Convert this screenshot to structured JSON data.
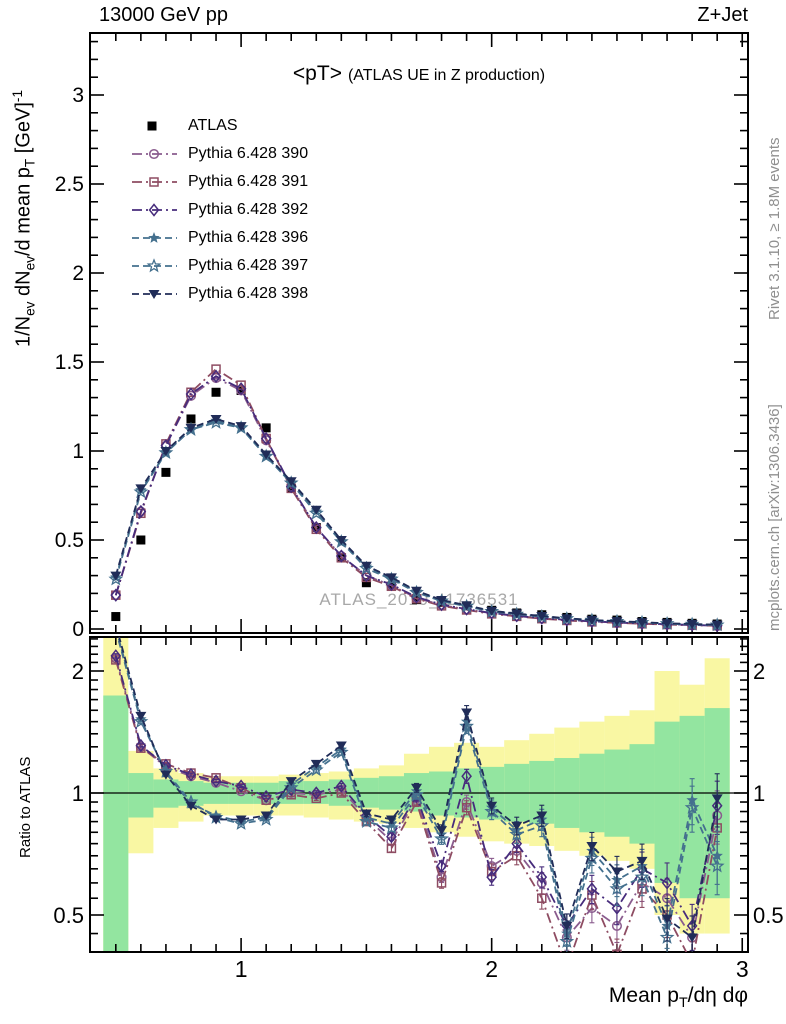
{
  "header": {
    "left": "13000 GeV pp",
    "right": "Z+Jet"
  },
  "title": {
    "main": "<pT>",
    "paren": "(ATLAS UE in Z production)"
  },
  "watermark": "ATLAS_2019_I1736531",
  "credits": {
    "top": "Rivet 3.1.10, ≥ 1.8M events",
    "bottom": "mcplots.cern.ch [arXiv:1306.3436]"
  },
  "colors": {
    "band_green": "#93e5a0",
    "band_yellow": "#f9f7a3",
    "credits_grey": "#8f8f8f",
    "watermark_grey": "#a8a8a8",
    "frame": "#000000"
  },
  "chart_data": {
    "type": "line",
    "title": "<pT> (ATLAS UE in Z production)",
    "xlabel": "Mean pT/dη dφ",
    "ylabel_main": "1/Nev dNev/d mean pT [GeV]^-1",
    "ylabel_ratio": "Ratio to ATLAS",
    "ylabel_main_parts": [
      {
        "t": "1/N"
      },
      {
        "t": "ev",
        "s": "sub"
      },
      {
        "t": " dN"
      },
      {
        "t": "ev",
        "s": "sub"
      },
      {
        "t": "/d mean p"
      },
      {
        "t": "T",
        "s": "sub"
      },
      {
        "t": " [GeV]"
      },
      {
        "t": "-1",
        "s": "sup"
      }
    ],
    "xlabel_parts": [
      {
        "t": "Mean p"
      },
      {
        "t": "T",
        "s": "sub"
      },
      {
        "t": "/dη dφ"
      }
    ],
    "x_range": [
      0.397,
      3.023
    ],
    "y_range_main": [
      -0.022,
      3.35
    ],
    "y_range_ratio": [
      0.405,
      2.425
    ],
    "ratio_log": true,
    "legend_position": "top-left",
    "grid": false,
    "main_y_ticks": {
      "major": [
        0,
        0.5,
        1,
        1.5,
        2,
        2.5,
        3
      ],
      "labels": [
        "0",
        "0.5",
        "1",
        "1.5",
        "2",
        "2.5",
        "3"
      ],
      "minor_step": 0.1
    },
    "x_ticks": {
      "major": [
        1,
        2,
        3
      ],
      "labels": [
        "1",
        "2",
        "3"
      ],
      "minor_step": 0.1,
      "min": 0.4,
      "max": 3.0
    },
    "ratio_y_ticks": {
      "major": [
        0.5,
        1,
        2
      ],
      "labels": [
        "0.5",
        "1",
        "2"
      ],
      "minor": [
        0.4,
        0.45,
        0.55,
        0.6,
        0.65,
        0.7,
        0.75,
        0.8,
        0.85,
        0.9,
        0.95,
        1.1,
        1.2,
        1.3,
        1.4,
        1.5,
        1.6,
        1.7,
        1.8,
        1.9,
        2.1,
        2.2,
        2.3,
        2.4
      ]
    },
    "x": [
      0.5,
      0.6,
      0.7,
      0.8,
      0.9,
      1.0,
      1.1,
      1.2,
      1.3,
      1.4,
      1.5,
      1.6,
      1.7,
      1.8,
      1.9,
      2.0,
      2.1,
      2.2,
      2.3,
      2.4,
      2.5,
      2.6,
      2.7,
      2.8,
      2.9
    ],
    "series": [
      {
        "name": "ATLAS",
        "color": "#000000",
        "marker": "square-filled",
        "line": "none",
        "main": [
          0.07,
          0.5,
          0.88,
          1.18,
          1.33,
          1.34,
          1.13,
          0.79,
          0.57,
          0.4,
          0.26,
          0.24,
          0.165,
          0.15,
          0.13,
          0.105,
          0.09,
          0.08,
          0.065,
          0.055,
          0.05,
          0.042,
          0.037,
          0.032,
          0.028
        ]
      },
      {
        "name": "Pythia 6.428 390",
        "color": "#8a5c8e",
        "marker": "circle-open",
        "line": "dashdot",
        "main": [
          0.19,
          0.66,
          1.03,
          1.31,
          1.41,
          1.34,
          1.06,
          0.8,
          0.57,
          0.41,
          0.3,
          0.245,
          0.175,
          0.135,
          0.11,
          0.088,
          0.073,
          0.06,
          0.05,
          0.042,
          0.036,
          0.031,
          0.026,
          0.022,
          0.019
        ],
        "ratio": [
          2.15,
          1.3,
          1.16,
          1.1,
          1.06,
          1.01,
          0.96,
          1.0,
          0.99,
          1.02,
          0.87,
          0.76,
          0.97,
          0.62,
          0.95,
          0.66,
          0.72,
          0.6,
          0.44,
          0.52,
          0.47,
          0.6,
          0.55,
          0.44,
          0.88
        ]
      },
      {
        "name": "Pythia 6.428 391",
        "color": "#8e4c62",
        "marker": "square-open",
        "line": "dashdot",
        "main": [
          0.19,
          0.65,
          1.04,
          1.33,
          1.46,
          1.37,
          1.07,
          0.79,
          0.56,
          0.4,
          0.29,
          0.24,
          0.17,
          0.13,
          0.107,
          0.085,
          0.071,
          0.058,
          0.048,
          0.04,
          0.034,
          0.029,
          0.025,
          0.021,
          0.018
        ],
        "ratio": [
          2.13,
          1.29,
          1.18,
          1.12,
          1.09,
          1.03,
          0.96,
          0.99,
          0.97,
          1.0,
          0.85,
          0.73,
          0.95,
          0.6,
          0.92,
          0.64,
          0.7,
          0.55,
          0.37,
          0.56,
          0.4,
          0.58,
          0.5,
          0.38,
          0.82
        ]
      },
      {
        "name": "Pythia 6.428 392",
        "color": "#472c7c",
        "marker": "diamond-open",
        "line": "dashdot",
        "main": [
          0.19,
          0.66,
          1.03,
          1.32,
          1.42,
          1.35,
          1.07,
          0.8,
          0.57,
          0.41,
          0.3,
          0.25,
          0.18,
          0.137,
          0.112,
          0.09,
          0.074,
          0.061,
          0.051,
          0.043,
          0.037,
          0.031,
          0.027,
          0.023,
          0.019
        ],
        "ratio": [
          2.18,
          1.31,
          1.17,
          1.11,
          1.07,
          1.04,
          0.98,
          1.02,
          1.0,
          1.04,
          0.88,
          0.78,
          0.98,
          0.66,
          1.1,
          0.62,
          0.75,
          0.62,
          0.47,
          0.58,
          0.52,
          0.65,
          0.6,
          0.47,
          0.93
        ]
      },
      {
        "name": "Pythia 6.428 396",
        "color": "#44708e",
        "marker": "star-filled",
        "line": "dashed",
        "main": [
          0.29,
          0.78,
          0.99,
          1.12,
          1.17,
          1.13,
          0.97,
          0.82,
          0.66,
          0.49,
          0.35,
          0.285,
          0.21,
          0.16,
          0.13,
          0.1,
          0.085,
          0.071,
          0.059,
          0.05,
          0.043,
          0.037,
          0.031,
          0.027,
          0.023
        ],
        "ratio": [
          2.55,
          1.52,
          1.12,
          0.94,
          0.88,
          0.85,
          0.87,
          1.05,
          1.16,
          1.28,
          0.87,
          0.84,
          1.01,
          0.79,
          1.5,
          0.92,
          0.81,
          0.86,
          0.45,
          0.72,
          0.61,
          0.66,
          0.47,
          0.96,
          0.7
        ]
      },
      {
        "name": "Pythia 6.428 397",
        "color": "#44708e",
        "marker": "star-open",
        "line": "dashed",
        "main": [
          0.28,
          0.77,
          0.99,
          1.12,
          1.16,
          1.13,
          0.97,
          0.82,
          0.65,
          0.49,
          0.34,
          0.28,
          0.205,
          0.157,
          0.127,
          0.098,
          0.083,
          0.069,
          0.058,
          0.049,
          0.042,
          0.036,
          0.03,
          0.026,
          0.022
        ],
        "ratio": [
          2.52,
          1.5,
          1.13,
          0.95,
          0.87,
          0.84,
          0.86,
          1.03,
          1.14,
          1.26,
          0.85,
          0.82,
          0.99,
          0.77,
          1.46,
          0.9,
          0.79,
          0.83,
          0.43,
          0.69,
          0.58,
          0.62,
          0.44,
          0.92,
          0.66
        ]
      },
      {
        "name": "Pythia 6.428 398",
        "color": "#202c58",
        "marker": "triangle-down-filled",
        "line": "dashed",
        "main": [
          0.3,
          0.79,
          1.0,
          1.13,
          1.18,
          1.14,
          0.98,
          0.83,
          0.67,
          0.5,
          0.355,
          0.29,
          0.215,
          0.163,
          0.133,
          0.102,
          0.087,
          0.073,
          0.06,
          0.051,
          0.044,
          0.038,
          0.032,
          0.028,
          0.024
        ],
        "ratio": [
          2.6,
          1.55,
          1.11,
          0.93,
          0.86,
          0.86,
          0.88,
          1.07,
          1.18,
          1.31,
          0.89,
          0.86,
          1.03,
          0.81,
          1.58,
          0.93,
          0.83,
          0.88,
          0.47,
          0.74,
          0.64,
          0.68,
          0.49,
          0.44,
          0.97
        ]
      }
    ],
    "ratio_err_frac": [
      0.012,
      0.01,
      0.008,
      0.008,
      0.008,
      0.008,
      0.009,
      0.01,
      0.012,
      0.015,
      0.018,
      0.02,
      0.025,
      0.03,
      0.04,
      0.045,
      0.05,
      0.06,
      0.07,
      0.08,
      0.09,
      0.1,
      0.12,
      0.13,
      0.15
    ],
    "bands": {
      "bin_half_width": 0.05,
      "green_lo": [
        0.4,
        0.87,
        0.92,
        0.93,
        0.94,
        0.94,
        0.94,
        0.94,
        0.94,
        0.93,
        0.92,
        0.91,
        0.9,
        0.88,
        0.87,
        0.86,
        0.85,
        0.84,
        0.82,
        0.8,
        0.78,
        0.75,
        0.6,
        0.55,
        0.55
      ],
      "green_hi": [
        1.74,
        1.12,
        1.08,
        1.07,
        1.06,
        1.06,
        1.06,
        1.07,
        1.07,
        1.08,
        1.09,
        1.1,
        1.12,
        1.13,
        1.15,
        1.16,
        1.18,
        1.2,
        1.22,
        1.25,
        1.28,
        1.32,
        1.5,
        1.55,
        1.62
      ],
      "yellow_lo": [
        0.4,
        0.71,
        0.82,
        0.85,
        0.88,
        0.88,
        0.88,
        0.88,
        0.87,
        0.86,
        0.85,
        0.84,
        0.82,
        0.8,
        0.78,
        0.76,
        0.75,
        0.74,
        0.72,
        0.7,
        0.68,
        0.65,
        0.5,
        0.45,
        0.45
      ],
      "yellow_hi": [
        2.43,
        1.27,
        1.15,
        1.12,
        1.1,
        1.1,
        1.1,
        1.11,
        1.12,
        1.13,
        1.15,
        1.17,
        1.25,
        1.3,
        1.33,
        1.3,
        1.35,
        1.4,
        1.45,
        1.5,
        1.55,
        1.6,
        2.0,
        1.85,
        2.15
      ]
    }
  }
}
